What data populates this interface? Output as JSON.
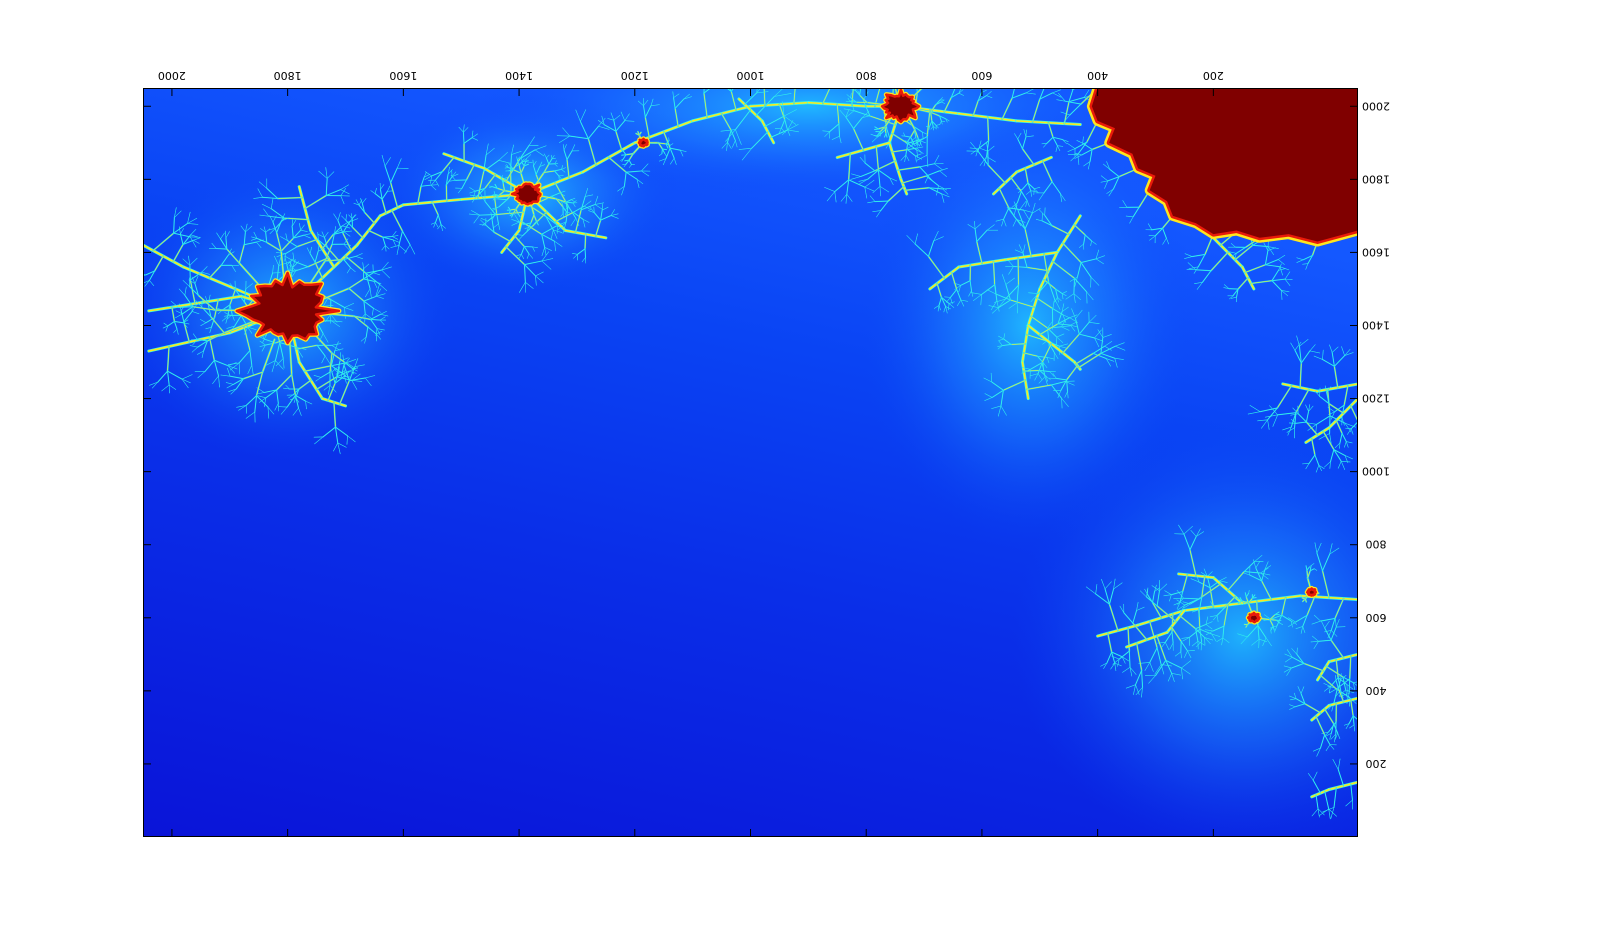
{
  "chart_data": {
    "type": "heatmap",
    "title": "",
    "xlabel": "",
    "ylabel": "",
    "orientation": "image rotated 180 degrees (axis labels upside down)",
    "x_axis_position": "top",
    "y_axis_position": "right",
    "xlim": [
      -50,
      2050
    ],
    "ylim": [
      0,
      2050
    ],
    "x_reversed": true,
    "y_reversed": true,
    "x_ticks": [
      {
        "value": 200,
        "label": "200"
      },
      {
        "value": 400,
        "label": "400"
      },
      {
        "value": 600,
        "label": "600"
      },
      {
        "value": 800,
        "label": "800"
      },
      {
        "value": 1000,
        "label": "1000"
      },
      {
        "value": 1200,
        "label": "1200"
      },
      {
        "value": 1400,
        "label": "1400"
      },
      {
        "value": 1600,
        "label": "1600"
      },
      {
        "value": 1800,
        "label": "1800"
      },
      {
        "value": 2000,
        "label": "2000"
      }
    ],
    "y_ticks": [
      {
        "value": 200,
        "label": "200"
      },
      {
        "value": 400,
        "label": "400"
      },
      {
        "value": 600,
        "label": "600"
      },
      {
        "value": 800,
        "label": "800"
      },
      {
        "value": 1000,
        "label": "1000"
      },
      {
        "value": 1200,
        "label": "1200"
      },
      {
        "value": 1400,
        "label": "1400"
      },
      {
        "value": 1600,
        "label": "1600"
      },
      {
        "value": 1800,
        "label": "1800"
      },
      {
        "value": 2000,
        "label": "2000"
      }
    ],
    "grid": false,
    "legend": "none",
    "colormap": "jet",
    "colors": {
      "background_deep": "#0a14d8",
      "background_mid": "#0a3cf0",
      "background_light": "#1e78ff",
      "halo": "#22c8ff",
      "cyan": "#39ffe0",
      "yellow": "#ffe61e",
      "red": "#e81a0a",
      "set_interior": "#800000"
    },
    "features": [
      {
        "kind": "main-set-region",
        "x_range": [
          -50,
          400
        ],
        "y_range": [
          1600,
          2050
        ]
      },
      {
        "kind": "minibrot",
        "x": 1800,
        "y": 1440
      },
      {
        "kind": "minibrot",
        "x": 1385,
        "y": 1760
      },
      {
        "kind": "minibrot",
        "x": 740,
        "y": 2000
      },
      {
        "kind": "filament",
        "x_range": [
          1050,
          1600
        ],
        "y_range": [
          1650,
          1950
        ]
      },
      {
        "kind": "filament",
        "x_range": [
          400,
          700
        ],
        "y_range": [
          1150,
          1600
        ]
      },
      {
        "kind": "filament",
        "x_range": [
          -50,
          400
        ],
        "y_range": [
          50,
          800
        ]
      }
    ]
  }
}
